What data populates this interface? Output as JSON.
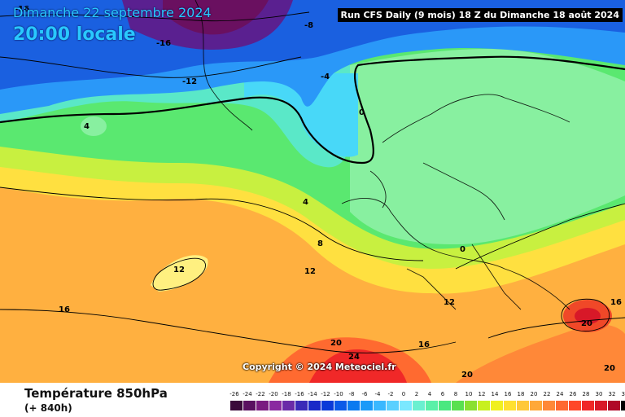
{
  "header": {
    "date_line": "Dimanche 22 septembre 2024",
    "time_line": "20:00 locale",
    "run_info": "Run CFS Daily (9 mois) 18 Z du Dimanche 18 août 2024"
  },
  "map": {
    "copyright": "Copyright © 2024 Meteociel.fr",
    "isotherm_labels": [
      {
        "text": "-16",
        "dark": true
      },
      {
        "text": "-16",
        "dark": false
      },
      {
        "text": "-12",
        "dark": false
      },
      {
        "text": "-8",
        "dark": false
      },
      {
        "text": "-4",
        "dark": false
      },
      {
        "text": "0",
        "dark": false
      },
      {
        "text": "4",
        "dark": false
      },
      {
        "text": "4",
        "dark": false
      },
      {
        "text": "8",
        "dark": false
      },
      {
        "text": "12",
        "dark": false
      },
      {
        "text": "12",
        "dark": false
      },
      {
        "text": "12",
        "dark": false
      },
      {
        "text": "16",
        "dark": false
      },
      {
        "text": "16",
        "dark": false
      },
      {
        "text": "16",
        "dark": false
      },
      {
        "text": "20",
        "dark": false
      },
      {
        "text": "20",
        "dark": false
      },
      {
        "text": "20",
        "dark": false
      },
      {
        "text": "20",
        "dark": false
      },
      {
        "text": "24",
        "dark": false
      },
      {
        "text": "0",
        "dark": false
      }
    ]
  },
  "footer": {
    "parameter": "Température 850hPa",
    "lead_time": "(+ 840h)"
  },
  "legend": {
    "ticks": [
      "-26",
      "-24",
      "-22",
      "-20",
      "-18",
      "-16",
      "-14",
      "-12",
      "-10",
      "-8",
      "-6",
      "-4",
      "-2",
      "0",
      "2",
      "4",
      "6",
      "8",
      "10",
      "12",
      "14",
      "16",
      "18",
      "20",
      "22",
      "24",
      "26",
      "28",
      "30",
      "32",
      "34"
    ],
    "colors": [
      "#3a0a3a",
      "#5a1060",
      "#7a1a80",
      "#8a2aa0",
      "#6a2aa8",
      "#3a2ab8",
      "#1a2ac8",
      "#0a3ad8",
      "#0a5ae8",
      "#0a7af0",
      "#1a9af8",
      "#3ab8ff",
      "#5ad0ff",
      "#7ae8ff",
      "#6af0d0",
      "#5af0a8",
      "#4ae880",
      "#5ae050",
      "#8ae030",
      "#c8f020",
      "#f0f020",
      "#ffe030",
      "#ffc838",
      "#ffa838",
      "#ff8838",
      "#ff6830",
      "#ff4828",
      "#f02828",
      "#d81828",
      "#b00828",
      "#000000"
    ]
  }
}
